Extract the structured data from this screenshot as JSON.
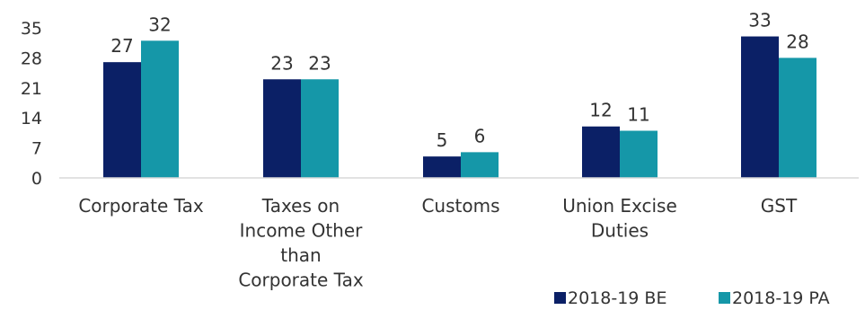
{
  "chart_data": {
    "type": "bar",
    "title": "",
    "xlabel": "",
    "ylabel": "",
    "ylim": [
      0,
      35
    ],
    "yticks": [
      0,
      7,
      14,
      21,
      28,
      35
    ],
    "grid": false,
    "legend_position": "bottom-right",
    "categories": [
      [
        "Corporate Tax"
      ],
      [
        "Taxes on",
        "Income Other",
        "than",
        "Corporate Tax"
      ],
      [
        "Customs"
      ],
      [
        "Union Excise",
        "Duties"
      ],
      [
        "GST"
      ]
    ],
    "series": [
      {
        "name": "2018-19 BE",
        "color": "#0b2066",
        "values": [
          27,
          23,
          5,
          12,
          33
        ]
      },
      {
        "name": "2018-19 PA",
        "color": "#1597a8",
        "values": [
          32,
          23,
          6,
          11,
          28
        ]
      }
    ]
  }
}
